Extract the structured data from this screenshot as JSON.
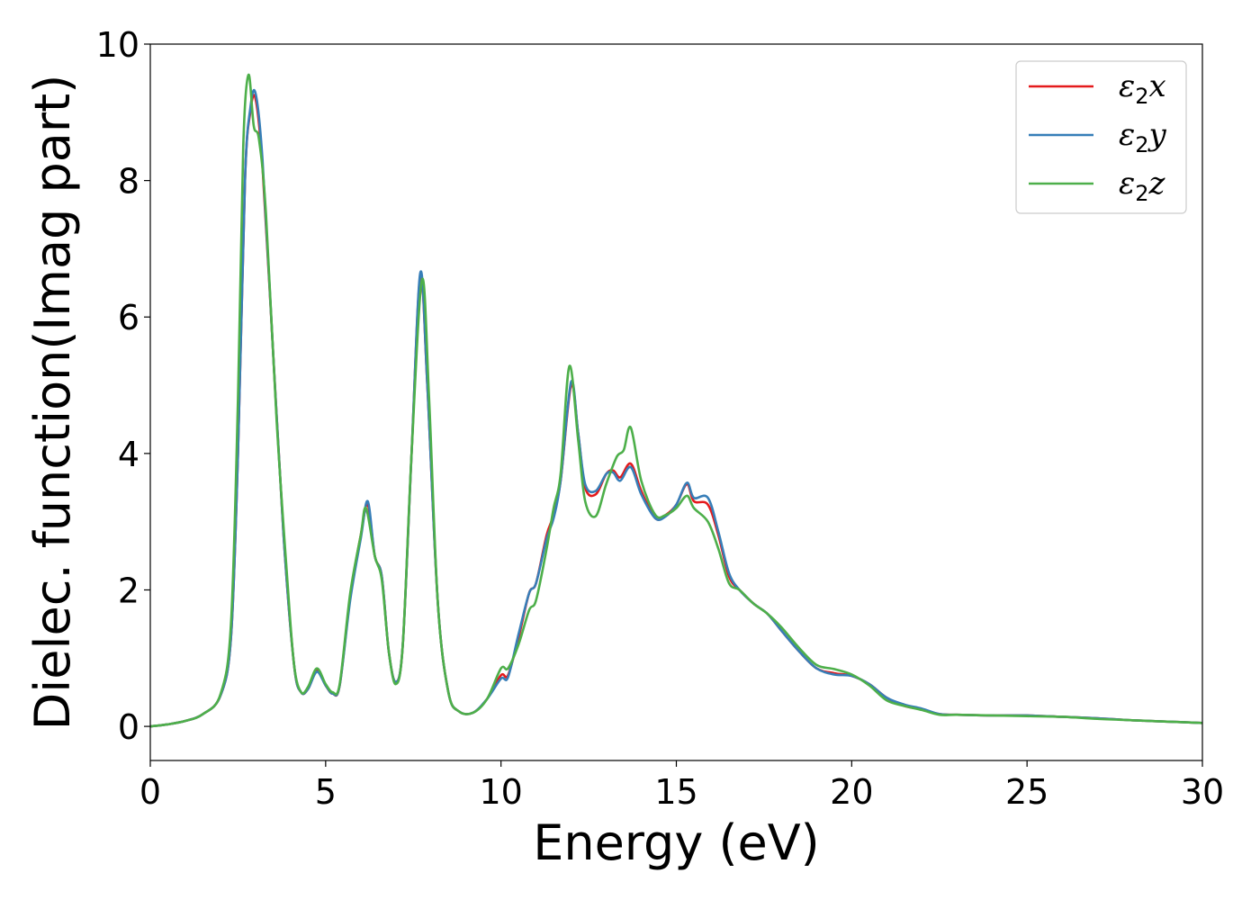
{
  "chart_data": {
    "type": "line",
    "xlabel": "Energy (eV)",
    "ylabel": "Dielec. function(Imag part)",
    "xlim": [
      0,
      30
    ],
    "ylim": [
      -0.5,
      10
    ],
    "xticks": [
      "0",
      "5",
      "10",
      "15",
      "20",
      "25",
      "30"
    ],
    "yticks": [
      "0",
      "2",
      "4",
      "6",
      "8",
      "10"
    ],
    "grid": false,
    "legend_position": "top-right",
    "series": [
      {
        "name": "ε2x",
        "legend_base": "ε",
        "legend_sub": "2",
        "legend_suffix": "x",
        "color": "#e41a1c",
        "points": [
          [
            0,
            0
          ],
          [
            0.5,
            0.03
          ],
          [
            1.0,
            0.08
          ],
          [
            1.5,
            0.18
          ],
          [
            2.0,
            0.45
          ],
          [
            2.3,
            1.3
          ],
          [
            2.5,
            4.0
          ],
          [
            2.7,
            8.0
          ],
          [
            2.85,
            9.0
          ],
          [
            3.0,
            9.2
          ],
          [
            3.2,
            8.2
          ],
          [
            3.5,
            5.5
          ],
          [
            3.8,
            2.8
          ],
          [
            4.1,
            0.9
          ],
          [
            4.3,
            0.5
          ],
          [
            4.5,
            0.55
          ],
          [
            4.75,
            0.82
          ],
          [
            5.0,
            0.6
          ],
          [
            5.2,
            0.48
          ],
          [
            5.4,
            0.6
          ],
          [
            5.7,
            1.9
          ],
          [
            6.0,
            2.8
          ],
          [
            6.2,
            3.25
          ],
          [
            6.4,
            2.5
          ],
          [
            6.6,
            2.2
          ],
          [
            6.8,
            1.1
          ],
          [
            7.0,
            0.65
          ],
          [
            7.2,
            1.2
          ],
          [
            7.45,
            4.0
          ],
          [
            7.7,
            6.6
          ],
          [
            7.9,
            5.0
          ],
          [
            8.2,
            1.8
          ],
          [
            8.5,
            0.5
          ],
          [
            8.8,
            0.22
          ],
          [
            9.2,
            0.2
          ],
          [
            9.6,
            0.4
          ],
          [
            10.0,
            0.75
          ],
          [
            10.2,
            0.75
          ],
          [
            10.5,
            1.3
          ],
          [
            10.8,
            1.95
          ],
          [
            11.0,
            2.1
          ],
          [
            11.3,
            2.8
          ],
          [
            11.5,
            3.1
          ],
          [
            11.7,
            3.6
          ],
          [
            12.0,
            5.0
          ],
          [
            12.2,
            4.3
          ],
          [
            12.4,
            3.5
          ],
          [
            12.7,
            3.4
          ],
          [
            13.0,
            3.7
          ],
          [
            13.2,
            3.75
          ],
          [
            13.4,
            3.65
          ],
          [
            13.7,
            3.85
          ],
          [
            14.0,
            3.45
          ],
          [
            14.4,
            3.05
          ],
          [
            14.7,
            3.1
          ],
          [
            15.0,
            3.25
          ],
          [
            15.3,
            3.55
          ],
          [
            15.5,
            3.3
          ],
          [
            15.9,
            3.25
          ],
          [
            16.2,
            2.8
          ],
          [
            16.5,
            2.2
          ],
          [
            16.8,
            2.0
          ],
          [
            17.2,
            1.8
          ],
          [
            17.6,
            1.65
          ],
          [
            18.0,
            1.4
          ],
          [
            18.5,
            1.1
          ],
          [
            19.0,
            0.85
          ],
          [
            19.5,
            0.78
          ],
          [
            20.0,
            0.74
          ],
          [
            20.5,
            0.62
          ],
          [
            21.0,
            0.42
          ],
          [
            21.5,
            0.3
          ],
          [
            22.0,
            0.25
          ],
          [
            22.5,
            0.18
          ],
          [
            23.0,
            0.17
          ],
          [
            24.0,
            0.16
          ],
          [
            25.0,
            0.16
          ],
          [
            26.0,
            0.14
          ],
          [
            27.0,
            0.12
          ],
          [
            28.0,
            0.09
          ],
          [
            29.0,
            0.07
          ],
          [
            30.0,
            0.05
          ]
        ]
      },
      {
        "name": "ε2y",
        "legend_base": "ε",
        "legend_sub": "2",
        "legend_suffix": "y",
        "color": "#377eb8",
        "points": [
          [
            0,
            0
          ],
          [
            0.5,
            0.03
          ],
          [
            1.0,
            0.08
          ],
          [
            1.5,
            0.18
          ],
          [
            2.0,
            0.45
          ],
          [
            2.3,
            1.3
          ],
          [
            2.5,
            4.0
          ],
          [
            2.7,
            8.0
          ],
          [
            2.85,
            9.05
          ],
          [
            3.0,
            9.28
          ],
          [
            3.2,
            8.3
          ],
          [
            3.5,
            5.5
          ],
          [
            3.8,
            2.8
          ],
          [
            4.1,
            0.9
          ],
          [
            4.3,
            0.5
          ],
          [
            4.5,
            0.55
          ],
          [
            4.75,
            0.8
          ],
          [
            5.0,
            0.6
          ],
          [
            5.2,
            0.48
          ],
          [
            5.4,
            0.6
          ],
          [
            5.7,
            1.85
          ],
          [
            6.0,
            2.75
          ],
          [
            6.2,
            3.3
          ],
          [
            6.4,
            2.5
          ],
          [
            6.6,
            2.2
          ],
          [
            6.8,
            1.1
          ],
          [
            7.0,
            0.65
          ],
          [
            7.2,
            1.2
          ],
          [
            7.45,
            4.0
          ],
          [
            7.7,
            6.65
          ],
          [
            7.9,
            5.0
          ],
          [
            8.2,
            1.8
          ],
          [
            8.5,
            0.5
          ],
          [
            8.8,
            0.22
          ],
          [
            9.2,
            0.2
          ],
          [
            9.6,
            0.4
          ],
          [
            10.0,
            0.7
          ],
          [
            10.2,
            0.72
          ],
          [
            10.5,
            1.35
          ],
          [
            10.8,
            1.95
          ],
          [
            11.0,
            2.1
          ],
          [
            11.3,
            2.75
          ],
          [
            11.5,
            3.05
          ],
          [
            11.7,
            3.6
          ],
          [
            12.0,
            5.05
          ],
          [
            12.2,
            4.3
          ],
          [
            12.4,
            3.55
          ],
          [
            12.7,
            3.45
          ],
          [
            13.0,
            3.7
          ],
          [
            13.2,
            3.72
          ],
          [
            13.4,
            3.6
          ],
          [
            13.7,
            3.8
          ],
          [
            14.0,
            3.4
          ],
          [
            14.4,
            3.05
          ],
          [
            14.7,
            3.08
          ],
          [
            15.0,
            3.25
          ],
          [
            15.3,
            3.57
          ],
          [
            15.5,
            3.35
          ],
          [
            15.9,
            3.35
          ],
          [
            16.2,
            2.85
          ],
          [
            16.5,
            2.25
          ],
          [
            16.8,
            2.0
          ],
          [
            17.2,
            1.8
          ],
          [
            17.6,
            1.65
          ],
          [
            18.0,
            1.4
          ],
          [
            18.5,
            1.1
          ],
          [
            19.0,
            0.85
          ],
          [
            19.5,
            0.76
          ],
          [
            20.0,
            0.74
          ],
          [
            20.5,
            0.62
          ],
          [
            21.0,
            0.42
          ],
          [
            21.5,
            0.32
          ],
          [
            22.0,
            0.26
          ],
          [
            22.5,
            0.18
          ],
          [
            23.0,
            0.17
          ],
          [
            24.0,
            0.16
          ],
          [
            25.0,
            0.16
          ],
          [
            26.0,
            0.14
          ],
          [
            27.0,
            0.12
          ],
          [
            28.0,
            0.09
          ],
          [
            29.0,
            0.07
          ],
          [
            30.0,
            0.05
          ]
        ]
      },
      {
        "name": "ε2z",
        "legend_base": "ε",
        "legend_sub": "2",
        "legend_suffix": "z",
        "color": "#4daf4a",
        "points": [
          [
            0,
            0
          ],
          [
            0.5,
            0.03
          ],
          [
            1.0,
            0.08
          ],
          [
            1.5,
            0.18
          ],
          [
            2.0,
            0.47
          ],
          [
            2.3,
            1.5
          ],
          [
            2.5,
            4.8
          ],
          [
            2.65,
            8.5
          ],
          [
            2.8,
            9.55
          ],
          [
            2.95,
            8.8
          ],
          [
            3.1,
            8.6
          ],
          [
            3.3,
            7.5
          ],
          [
            3.6,
            4.5
          ],
          [
            3.9,
            2.2
          ],
          [
            4.1,
            0.9
          ],
          [
            4.3,
            0.5
          ],
          [
            4.5,
            0.58
          ],
          [
            4.75,
            0.85
          ],
          [
            5.0,
            0.62
          ],
          [
            5.2,
            0.5
          ],
          [
            5.4,
            0.62
          ],
          [
            5.7,
            1.95
          ],
          [
            6.0,
            2.8
          ],
          [
            6.15,
            3.2
          ],
          [
            6.4,
            2.5
          ],
          [
            6.6,
            2.15
          ],
          [
            6.8,
            1.1
          ],
          [
            7.0,
            0.62
          ],
          [
            7.2,
            1.2
          ],
          [
            7.45,
            4.0
          ],
          [
            7.75,
            6.55
          ],
          [
            7.95,
            4.8
          ],
          [
            8.2,
            1.8
          ],
          [
            8.5,
            0.5
          ],
          [
            8.8,
            0.22
          ],
          [
            9.2,
            0.2
          ],
          [
            9.6,
            0.4
          ],
          [
            10.0,
            0.85
          ],
          [
            10.2,
            0.85
          ],
          [
            10.5,
            1.2
          ],
          [
            10.8,
            1.7
          ],
          [
            11.0,
            1.85
          ],
          [
            11.3,
            2.6
          ],
          [
            11.5,
            3.2
          ],
          [
            11.7,
            3.7
          ],
          [
            11.95,
            5.28
          ],
          [
            12.2,
            4.2
          ],
          [
            12.4,
            3.3
          ],
          [
            12.7,
            3.08
          ],
          [
            13.0,
            3.55
          ],
          [
            13.3,
            3.95
          ],
          [
            13.5,
            4.05
          ],
          [
            13.7,
            4.38
          ],
          [
            14.0,
            3.6
          ],
          [
            14.4,
            3.1
          ],
          [
            14.7,
            3.1
          ],
          [
            15.0,
            3.2
          ],
          [
            15.3,
            3.38
          ],
          [
            15.5,
            3.2
          ],
          [
            15.9,
            3.0
          ],
          [
            16.2,
            2.6
          ],
          [
            16.5,
            2.1
          ],
          [
            16.8,
            2.0
          ],
          [
            17.2,
            1.8
          ],
          [
            17.6,
            1.65
          ],
          [
            18.0,
            1.45
          ],
          [
            18.5,
            1.15
          ],
          [
            19.0,
            0.9
          ],
          [
            19.5,
            0.84
          ],
          [
            20.0,
            0.76
          ],
          [
            20.5,
            0.6
          ],
          [
            21.0,
            0.38
          ],
          [
            21.5,
            0.3
          ],
          [
            22.0,
            0.24
          ],
          [
            22.5,
            0.17
          ],
          [
            23.0,
            0.17
          ],
          [
            24.0,
            0.16
          ],
          [
            25.0,
            0.15
          ],
          [
            26.0,
            0.14
          ],
          [
            27.0,
            0.11
          ],
          [
            28.0,
            0.09
          ],
          [
            29.0,
            0.07
          ],
          [
            30.0,
            0.05
          ]
        ]
      }
    ]
  }
}
